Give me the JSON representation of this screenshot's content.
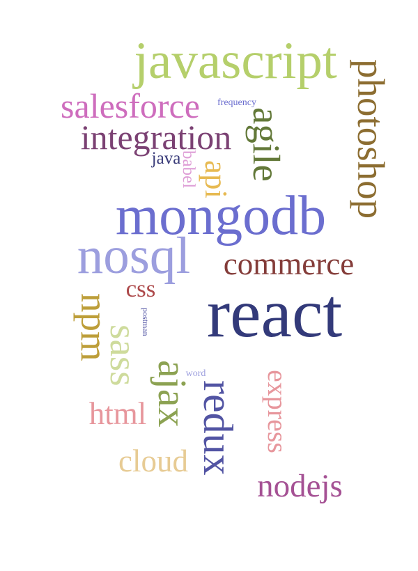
{
  "words": [
    {
      "id": "react",
      "text": "react",
      "color": "#333a7a"
    },
    {
      "id": "javascript",
      "text": "javascript",
      "color": "#b5cf6b"
    },
    {
      "id": "photoshop",
      "text": "photoshop",
      "color": "#8c6d31"
    },
    {
      "id": "mongodb",
      "text": "mongodb",
      "color": "#6b6ecf"
    },
    {
      "id": "nosql",
      "text": "nosql",
      "color": "#9c9ede"
    },
    {
      "id": "agile",
      "text": "agile",
      "color": "#637939"
    },
    {
      "id": "redux",
      "text": "redux",
      "color": "#5254a3"
    },
    {
      "id": "salesforce",
      "text": "salesforce",
      "color": "#ce6dbd"
    },
    {
      "id": "integration",
      "text": "integration",
      "color": "#7b4173"
    },
    {
      "id": "commerce",
      "text": "commerce",
      "color": "#843c39"
    },
    {
      "id": "npm",
      "text": "npm",
      "color": "#bd9e39"
    },
    {
      "id": "sass",
      "text": "sass",
      "color": "#cedb9c"
    },
    {
      "id": "ajax",
      "text": "ajax",
      "color": "#8ca252"
    },
    {
      "id": "express",
      "text": "express",
      "color": "#e7969c"
    },
    {
      "id": "nodejs",
      "text": "nodejs",
      "color": "#a55194"
    },
    {
      "id": "api",
      "text": "api",
      "color": "#e7ba52"
    },
    {
      "id": "css",
      "text": "css",
      "color": "#ad494a"
    },
    {
      "id": "html",
      "text": "html",
      "color": "#e7969c"
    },
    {
      "id": "cloud",
      "text": "cloud",
      "color": "#e7cb94"
    },
    {
      "id": "java",
      "text": "java",
      "color": "#393b79"
    },
    {
      "id": "babel",
      "text": "babel",
      "color": "#de9ed6"
    },
    {
      "id": "frequency",
      "text": "frequency",
      "color": "#6b6ecf"
    },
    {
      "id": "postman",
      "text": "postman",
      "color": "#5254a3"
    },
    {
      "id": "word",
      "text": "word",
      "color": "#9c9ede"
    }
  ]
}
